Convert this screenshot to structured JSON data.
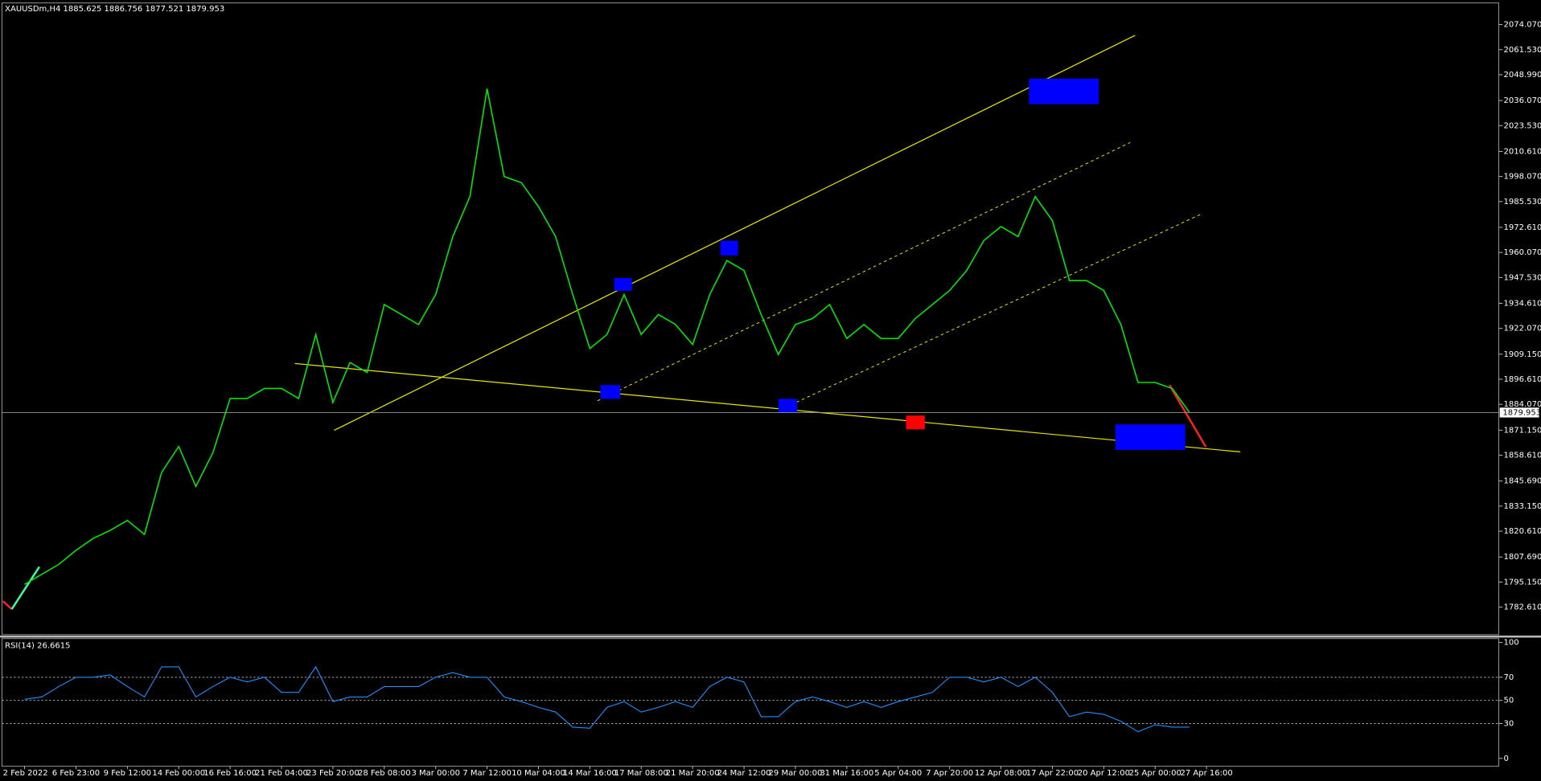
{
  "chart_data": [
    {
      "type": "line",
      "title": "XAUUSDm,H4  1885.625 1886.756 1877.521 1879.953",
      "series": [
        {
          "name": "XAUUSDm",
          "color": "#00e600",
          "values": [
            1794,
            1799,
            1804,
            1811,
            1817,
            1821,
            1826,
            1819,
            1850,
            1863,
            1843,
            1860,
            1887,
            1887,
            1892,
            1892,
            1887,
            1919,
            1885,
            1905,
            1900,
            1934,
            1929,
            1924,
            1939,
            1968,
            1988,
            2042,
            1998,
            1995,
            1983,
            1968,
            1939,
            1912,
            1919,
            1939,
            1919,
            1929,
            1924,
            1914,
            1939,
            1956,
            1951,
            1929,
            1909,
            1924,
            1927,
            1934,
            1917,
            1924,
            1917,
            1917,
            1927,
            1934,
            1941,
            1951,
            1966,
            1973,
            1968,
            1988,
            1976,
            1946,
            1946,
            1941,
            1924,
            1895,
            1895,
            1892,
            1880,
            null
          ]
        }
      ],
      "current_price": 1879.953,
      "ylim": [
        1768.85,
        2084.88
      ],
      "yticks": [
        {
          "value": 2074.07,
          "label": "2074.070"
        },
        {
          "value": 2061.53,
          "label": "2061.530"
        },
        {
          "value": 2048.99,
          "label": "2048.990"
        },
        {
          "value": 2036.07,
          "label": "2036.070"
        },
        {
          "value": 2023.53,
          "label": "2023.530"
        },
        {
          "value": 2010.61,
          "label": "2010.610"
        },
        {
          "value": 1998.07,
          "label": "1998.070"
        },
        {
          "value": 1985.53,
          "label": "1985.530"
        },
        {
          "value": 1972.61,
          "label": "1972.610"
        },
        {
          "value": 1960.07,
          "label": "1960.070"
        },
        {
          "value": 1947.53,
          "label": "1947.530"
        },
        {
          "value": 1934.61,
          "label": "1934.610"
        },
        {
          "value": 1922.07,
          "label": "1922.070"
        },
        {
          "value": 1909.15,
          "label": "1909.150"
        },
        {
          "value": 1896.61,
          "label": "1896.610"
        },
        {
          "value": 1884.07,
          "label": "1884.070"
        },
        {
          "value": 1871.15,
          "label": "1871.150"
        },
        {
          "value": 1858.61,
          "label": "1858.610"
        },
        {
          "value": 1845.69,
          "label": "1845.690"
        },
        {
          "value": 1833.15,
          "label": "1833.150"
        },
        {
          "value": 1820.61,
          "label": "1820.610"
        },
        {
          "value": 1807.69,
          "label": "1807.690"
        },
        {
          "value": 1795.15,
          "label": "1795.150"
        },
        {
          "value": 1782.61,
          "label": "1782.610"
        }
      ]
    },
    {
      "type": "line",
      "title": "RSI(14) 26.6615",
      "categories": [
        "2 Feb 2022",
        null,
        null,
        "6 Feb 23:00",
        null,
        null,
        "9 Feb 12:00",
        null,
        null,
        "14 Feb 00:00",
        null,
        null,
        "16 Feb 16:00",
        null,
        null,
        "21 Feb 04:00",
        null,
        null,
        "23 Feb 20:00",
        null,
        null,
        "28 Feb 08:00",
        null,
        null,
        "3 Mar 00:00",
        null,
        null,
        "7 Mar 12:00",
        null,
        null,
        "10 Mar 04:00",
        null,
        null,
        "14 Mar 16:00",
        null,
        null,
        "17 Mar 08:00",
        null,
        null,
        "21 Mar 20:00",
        null,
        null,
        "24 Mar 12:00",
        null,
        null,
        "29 Mar 00:00",
        null,
        null,
        "31 Mar 16:00",
        null,
        null,
        "5 Apr 04:00",
        null,
        null,
        "7 Apr 20:00",
        null,
        null,
        "12 Apr 08:00",
        null,
        null,
        "17 Apr 22:00",
        null,
        null,
        "20 Apr 12:00",
        null,
        null,
        "25 Apr 00:00",
        null,
        null,
        "27 Apr 16:00"
      ],
      "series": [
        {
          "name": "RSI(14)",
          "color": "#1e90ff",
          "values": [
            51,
            53,
            62,
            70,
            70,
            72,
            62,
            53,
            79,
            79,
            53,
            62,
            70,
            66,
            70,
            57,
            57,
            79,
            49,
            53,
            53,
            62,
            62,
            62,
            70,
            74,
            70,
            70,
            53,
            49,
            44,
            40,
            27,
            26,
            44,
            49,
            40,
            44,
            49,
            44,
            62,
            70,
            66,
            36,
            36,
            49,
            53,
            49,
            44,
            49,
            44,
            49,
            53,
            57,
            70,
            70,
            66,
            70,
            62,
            70,
            57,
            36,
            40,
            38,
            32,
            23,
            29,
            27,
            27,
            null
          ]
        }
      ],
      "levels": [
        70,
        50,
        30
      ],
      "ylim": [
        -6.8,
        103.4
      ],
      "yticks": [
        100,
        70,
        50,
        30,
        0
      ]
    }
  ]
}
